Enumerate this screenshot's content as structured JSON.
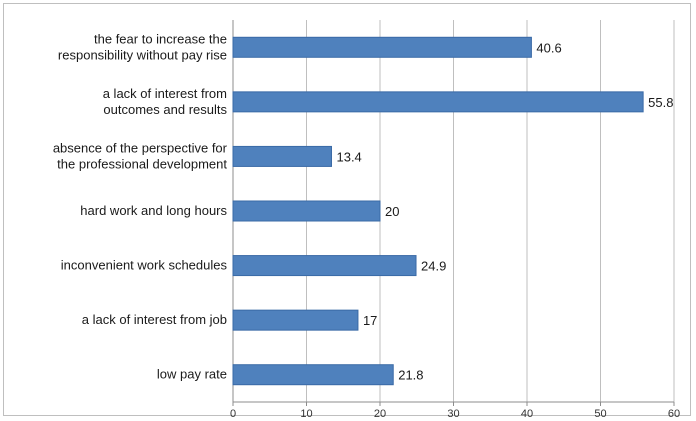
{
  "chart_data": {
    "type": "bar",
    "orientation": "horizontal",
    "categories": [
      [
        "the fear to increase the",
        "responsibility without pay rise"
      ],
      [
        "a lack of interest from",
        "outcomes  and results"
      ],
      [
        "absence of the perspective for",
        "the professional development"
      ],
      [
        "hard work and long hours"
      ],
      [
        "inconvenient work schedules"
      ],
      [
        "a lack of interest from job"
      ],
      [
        "low pay rate"
      ]
    ],
    "values": [
      40.6,
      55.8,
      13.4,
      20,
      24.9,
      17,
      21.8
    ],
    "value_labels": [
      "40.6",
      "55.8",
      "13.4",
      "20",
      "24.9",
      "17",
      "21.8"
    ],
    "x_ticks": [
      0,
      10,
      20,
      30,
      40,
      50,
      60
    ],
    "xlim": [
      0,
      60
    ],
    "grid": "vertical",
    "legend": "none",
    "bar_color": "#4f81bd",
    "bar_edge_color": "#3a6aa6",
    "grid_color": "#bfbfbf"
  }
}
